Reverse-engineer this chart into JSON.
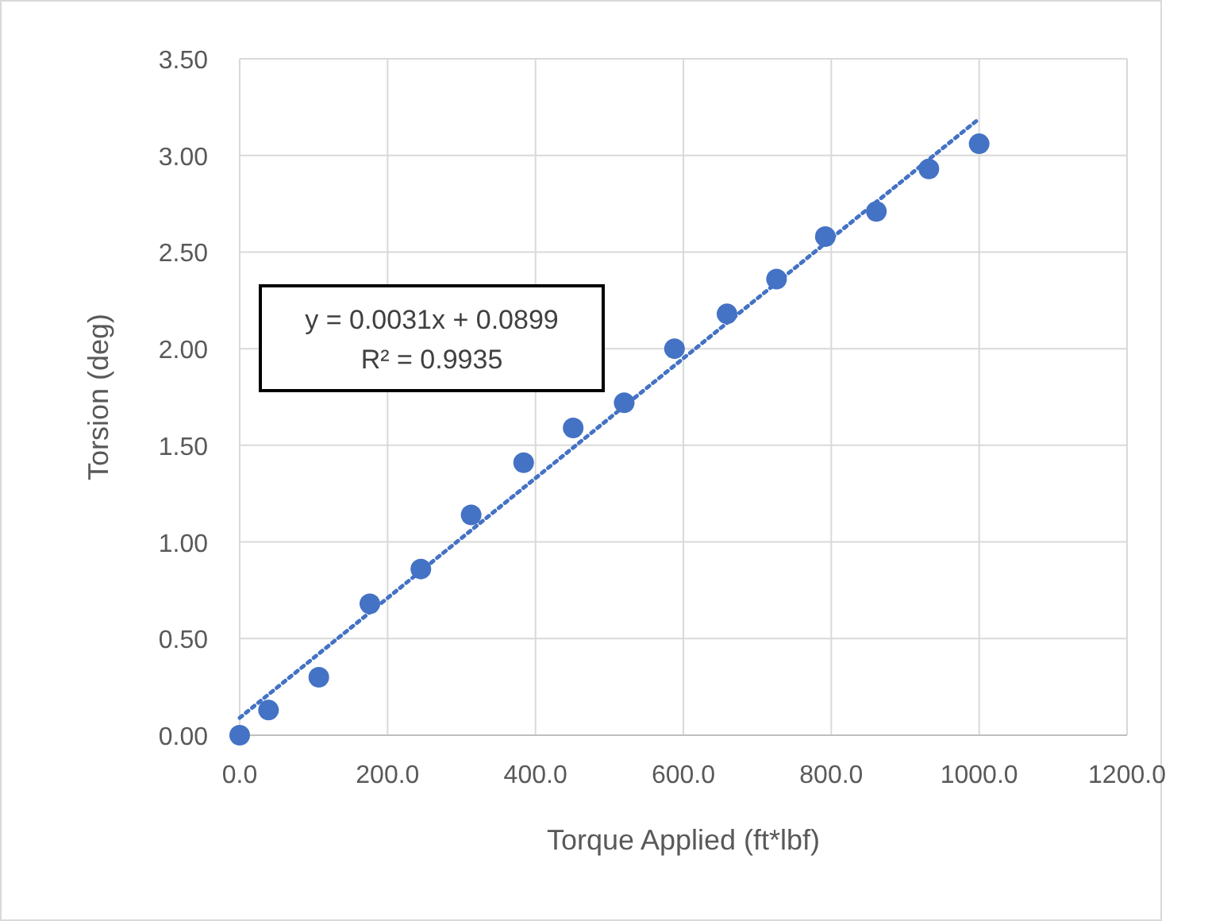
{
  "chart_data": {
    "type": "scatter",
    "xlabel": "Torque Applied (ft*lbf)",
    "ylabel": "Torsion (deg)",
    "xlim": [
      0,
      1200
    ],
    "ylim": [
      0,
      3.5
    ],
    "xticks": [
      {
        "value": 0,
        "label": "0.0"
      },
      {
        "value": 200,
        "label": "200.0"
      },
      {
        "value": 400,
        "label": "400.0"
      },
      {
        "value": 600,
        "label": "600.0"
      },
      {
        "value": 800,
        "label": "800.0"
      },
      {
        "value": 1000,
        "label": "1000.0"
      },
      {
        "value": 1200,
        "label": "1200.0"
      }
    ],
    "yticks": [
      {
        "value": 0,
        "label": "0.00"
      },
      {
        "value": 0.5,
        "label": "0.50"
      },
      {
        "value": 1,
        "label": "1.00"
      },
      {
        "value": 1.5,
        "label": "1.50"
      },
      {
        "value": 2,
        "label": "2.00"
      },
      {
        "value": 2.5,
        "label": "2.50"
      },
      {
        "value": 3,
        "label": "3.00"
      },
      {
        "value": 3.5,
        "label": "3.50"
      }
    ],
    "grid": true,
    "marker": "circle",
    "annotations": [
      "y = 0.0031x + 0.0899",
      "R² = 0.9935"
    ],
    "series": [
      {
        "color": "#4472c4",
        "x": [
          0,
          39,
          107,
          176,
          245,
          313,
          384,
          451,
          520,
          588,
          659,
          726,
          792,
          861,
          932,
          1000
        ],
        "values": [
          0,
          0.13,
          0.3,
          0.68,
          0.86,
          1.14,
          1.41,
          1.59,
          1.72,
          2.0,
          2.18,
          2.36,
          2.58,
          2.71,
          2.93,
          3.06
        ]
      },
      {
        "type": "line",
        "color": "#4472c4",
        "line_style": "dotted",
        "marker": "none",
        "x": [
          0,
          1000
        ],
        "values": [
          0.09,
          3.19
        ]
      }
    ]
  }
}
